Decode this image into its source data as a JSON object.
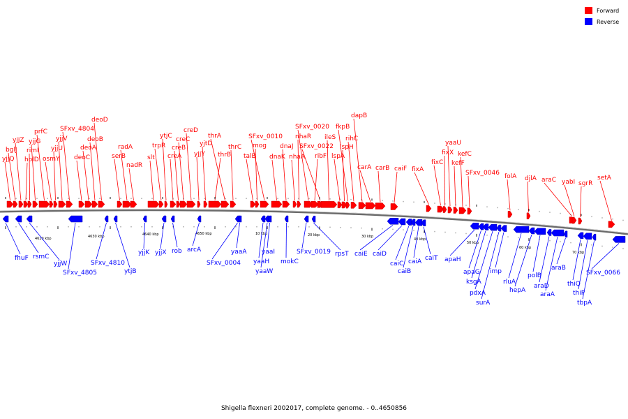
{
  "caption": "Shigella flexneri 2002017, complete genome. - 0..4650856",
  "legend": [
    {
      "label": "Forward",
      "color": "#ff0000"
    },
    {
      "label": "Reverse",
      "color": "#0000ff"
    }
  ],
  "colors": {
    "forward": "#ff0000",
    "forward_stroke": "#cc0000",
    "reverse": "#0000ff",
    "reverse_stroke": "#0000b0",
    "backbone": "#6b6b6b"
  },
  "ticks": [
    "4620 kbp",
    "4630 kbp",
    "4640 kbp",
    "4650 kbp",
    "10 kbp",
    "20 kbp",
    "30 kbp",
    "40 kbp",
    "50 kbp",
    "60 kbp",
    "70 kbp"
  ],
  "forward_genes": [
    "yjjQ",
    "bglJ",
    "yjjZ",
    "holD",
    "rimI",
    "yjjG",
    "prfC",
    "osmY",
    "yjjU",
    "yjjV",
    "SFxv_4804",
    "deoC",
    "deoA",
    "deoB",
    "deoD",
    "serB",
    "radA",
    "nadR",
    "slt",
    "trpR",
    "ytjC",
    "creA",
    "creB",
    "creC",
    "creD",
    "yjjY",
    "yjtD",
    "thrB",
    "thrA",
    "thrC",
    "talB",
    "mog",
    "SFxv_0010",
    "dnaK",
    "dnaJ",
    "nhaA",
    "nhaR",
    "SFxv_0020",
    "SFxv_0022",
    "ribF",
    "ileS",
    "lspA",
    "ispH",
    "fkpB",
    "rihC",
    "dapB",
    "carA",
    "carB",
    "caiF",
    "fixA",
    "fixC",
    "fixX",
    "yaaU",
    "kefF",
    "kefC",
    "SFxv_0046",
    "folA",
    "djlA",
    "araC",
    "yabI",
    "sgrR",
    "setA"
  ],
  "reverse_genes": [
    "fhuF",
    "rsmC",
    "yjjW",
    "SFxv_4805",
    "SFxv_4810",
    "ytjB",
    "yjjK",
    "yjjX",
    "rob",
    "arcA",
    "SFxv_0004",
    "yaaA",
    "yaaH",
    "yaaW",
    "yaaI",
    "mokC",
    "SFxv_0019",
    "rpsT",
    "caiE",
    "caiD",
    "caiC",
    "caiB",
    "caiA",
    "caiT",
    "apaH",
    "apaG",
    "ksgA",
    "pdxA",
    "surA",
    "imp",
    "rluA",
    "hepA",
    "polB",
    "araD",
    "araA",
    "araB",
    "thiQ",
    "thiP",
    "tbpA",
    "SFxv_0066"
  ]
}
